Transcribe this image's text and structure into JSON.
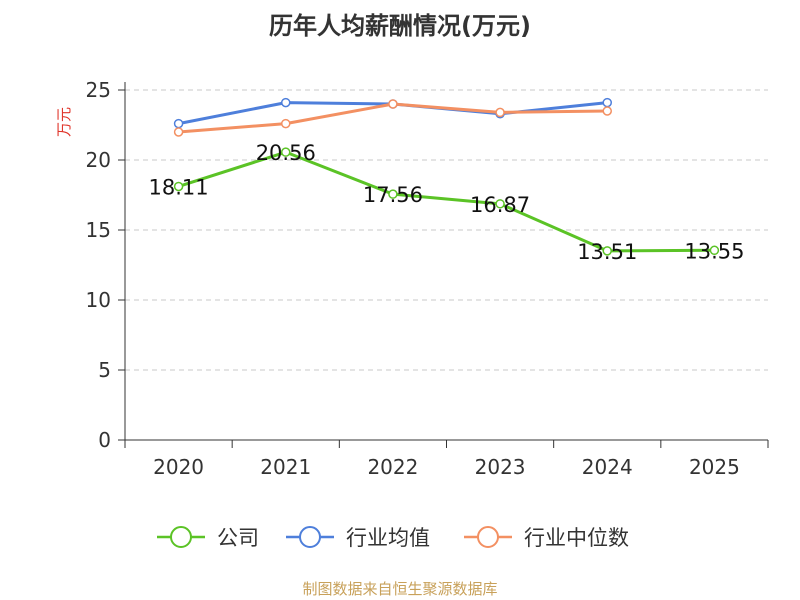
{
  "chart_data": {
    "type": "line",
    "title": "历年人均薪酬情况(万元)",
    "ylabel": "万元",
    "xlabel": "",
    "categories": [
      "2020",
      "2021",
      "2022",
      "2023",
      "2024",
      "2025"
    ],
    "ylim": [
      0,
      25
    ],
    "yticks": [
      0,
      5,
      10,
      15,
      20,
      25
    ],
    "grid": true,
    "legend_position": "bottom",
    "series": [
      {
        "name": "公司",
        "color": "#5bc326",
        "values": [
          18.11,
          20.56,
          17.56,
          16.87,
          13.51,
          13.55
        ],
        "labels": [
          "18.11",
          "20.56",
          "17.56",
          "16.87",
          "13.51",
          "13.55"
        ]
      },
      {
        "name": "行业均值",
        "color": "#4e7fdb",
        "values": [
          22.6,
          24.1,
          24.0,
          23.3,
          24.1,
          null
        ]
      },
      {
        "name": "行业中位数",
        "color": "#f39062",
        "values": [
          22.0,
          22.6,
          24.0,
          23.4,
          23.5,
          null
        ]
      }
    ],
    "source": "制图数据来自恒生聚源数据库"
  }
}
